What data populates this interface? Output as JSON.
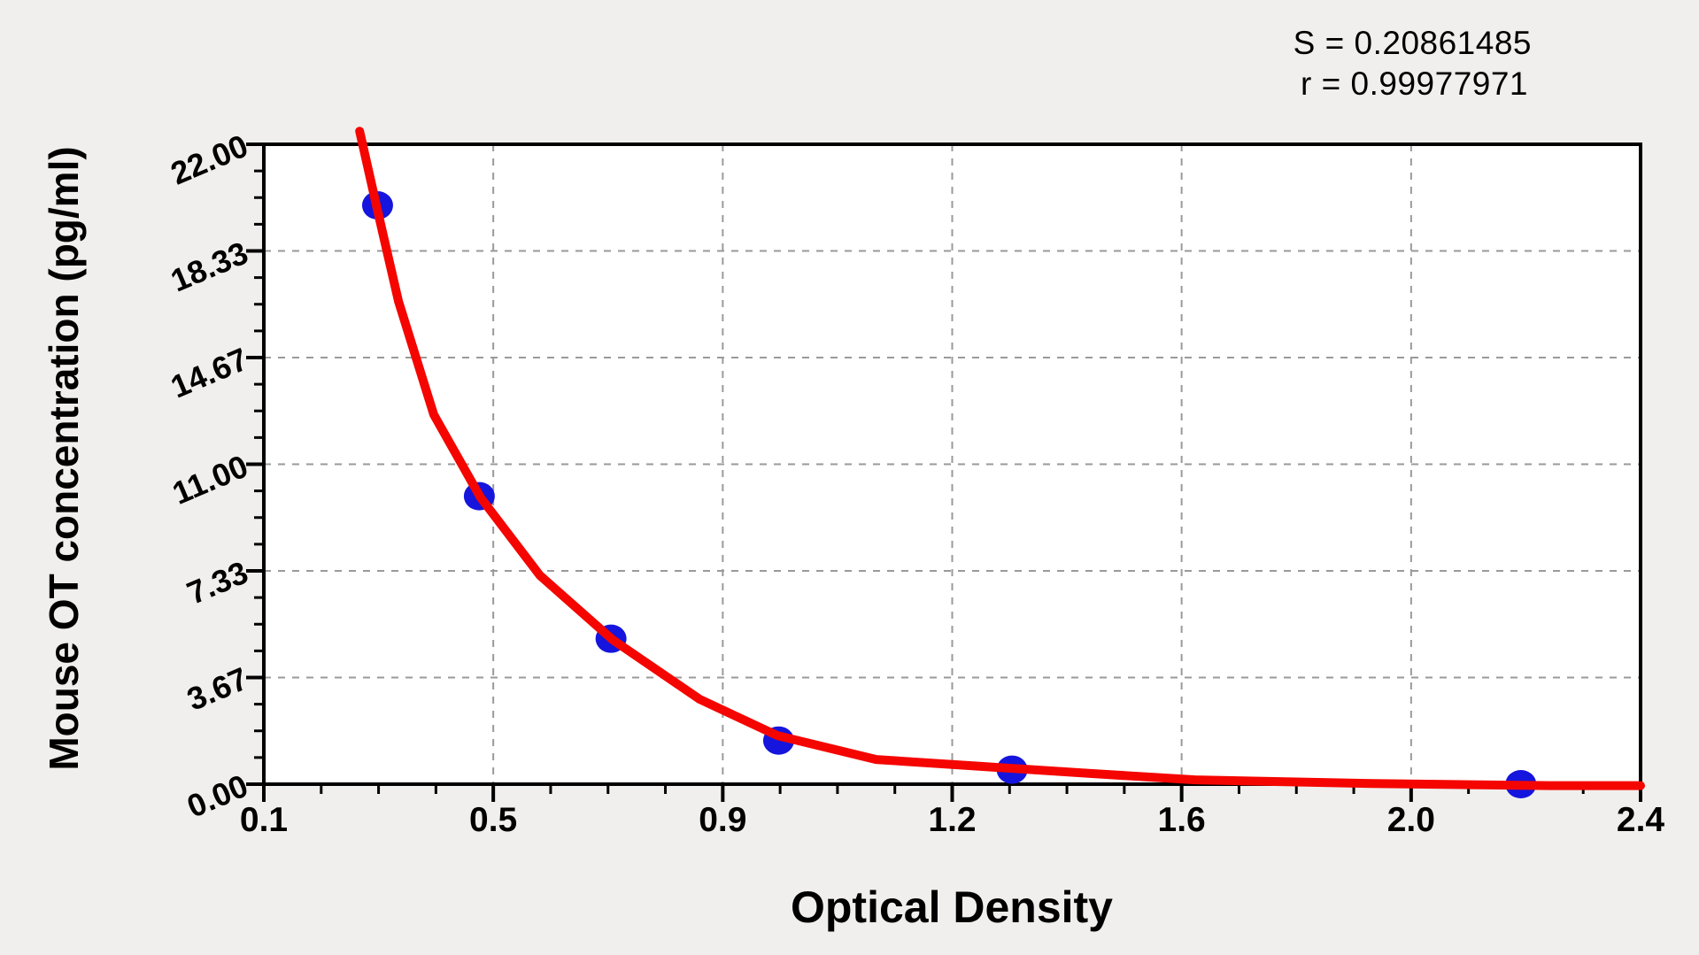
{
  "stats": {
    "s": "S = 0.20861485",
    "r": "r = 0.99977971"
  },
  "chart_data": {
    "type": "scatter",
    "title": "",
    "xlabel": "Optical Density",
    "ylabel": "Mouse OT concentration (pg/ml)",
    "xlim": [
      0.1,
      2.4
    ],
    "ylim": [
      0,
      22
    ],
    "x_ticks": {
      "values": [
        0.1,
        0.4833,
        0.8667,
        1.25,
        1.6333,
        2.0167,
        2.4
      ],
      "labels": [
        "0.1",
        "0.5",
        "0.9",
        "1.2",
        "1.6",
        "2.0",
        "2.4"
      ]
    },
    "y_ticks": {
      "values": [
        0,
        3.6667,
        7.3333,
        11,
        14.6667,
        18.3333,
        22
      ],
      "labels": [
        "0.00",
        "3.67",
        "7.33",
        "11.00",
        "14.67",
        "18.33",
        "22.00"
      ]
    },
    "minor_divisions_per_major": 4,
    "grid": "dashed gray lines at inner major ticks, both axes",
    "legend": "none",
    "points": [
      {
        "x": 0.29,
        "y": 19.9
      },
      {
        "x": 0.46,
        "y": 9.9
      },
      {
        "x": 0.68,
        "y": 5.0
      },
      {
        "x": 0.96,
        "y": 1.5
      },
      {
        "x": 1.35,
        "y": 0.5
      },
      {
        "x": 2.2,
        "y": 0.0
      }
    ],
    "curve": [
      [
        0.26,
        22.45
      ],
      [
        0.288,
        19.9
      ],
      [
        0.325,
        16.6
      ],
      [
        0.384,
        12.7
      ],
      [
        0.462,
        9.86
      ],
      [
        0.561,
        7.18
      ],
      [
        0.683,
        4.96
      ],
      [
        0.828,
        2.92
      ],
      [
        0.958,
        1.67
      ],
      [
        1.123,
        0.85
      ],
      [
        1.301,
        0.61
      ],
      [
        1.478,
        0.37
      ],
      [
        1.656,
        0.15
      ],
      [
        1.952,
        0.02
      ],
      [
        2.248,
        -0.05
      ],
      [
        2.4,
        -0.05
      ]
    ],
    "colors": {
      "point": "#1515dd",
      "curve": "#f50500",
      "grid": "#9a9a9a",
      "axis": "#000000",
      "plot_background": "#ffffff",
      "page_background": "#f0efed"
    }
  }
}
